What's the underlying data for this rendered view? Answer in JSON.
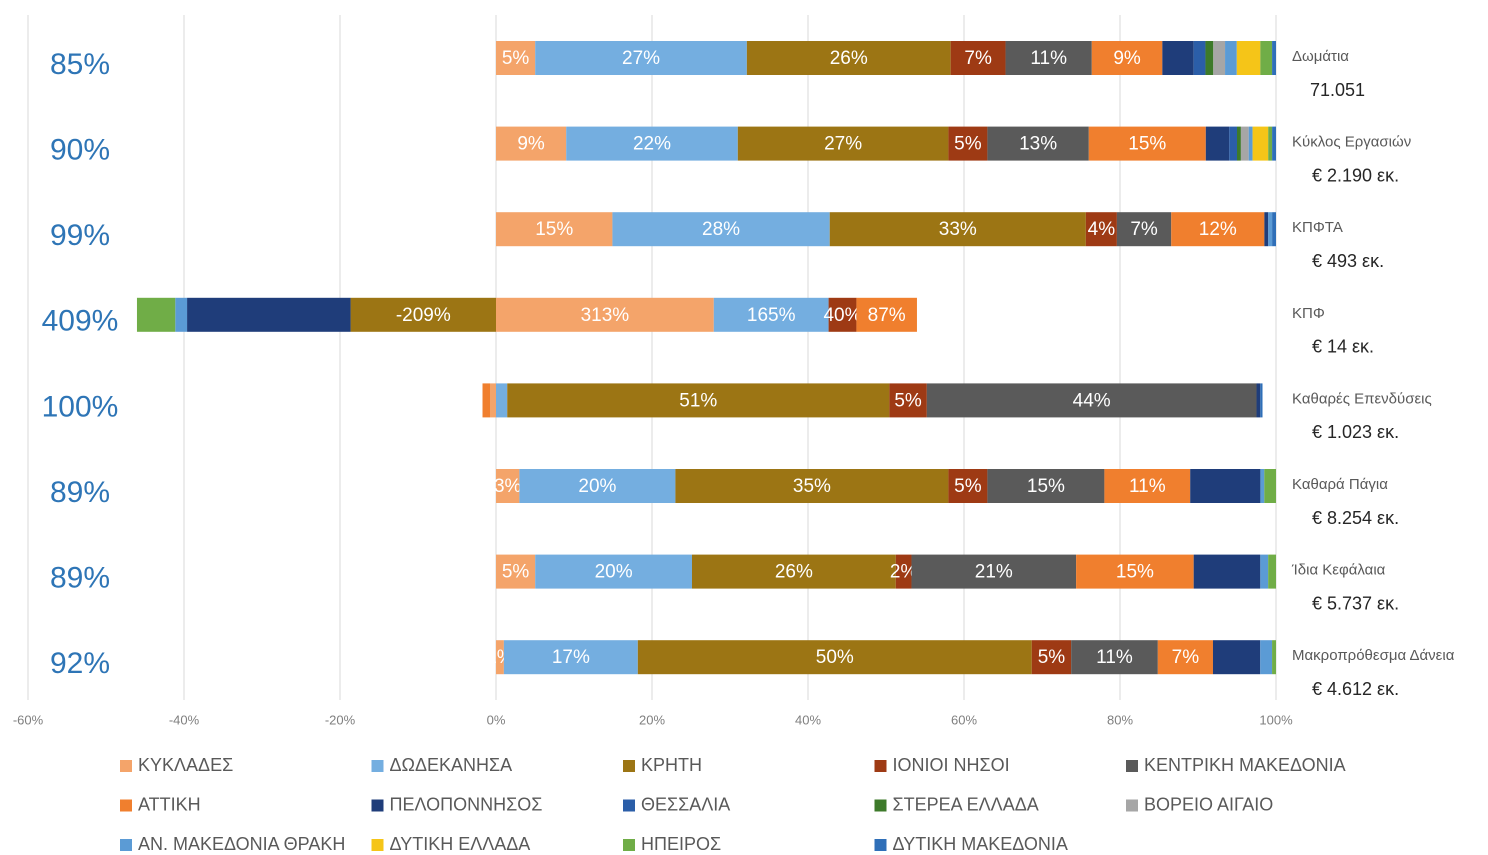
{
  "chart_data": {
    "type": "stacked_hbar",
    "stacked": "percent",
    "categories": [
      "Δωμάτια",
      "Κύκλος Εργασιών",
      "ΚΠΦΤΑ",
      "ΚΠΦ",
      "Καθαρές Επενδύσεις",
      "Καθαρά Πάγια",
      "Ίδια Κεφάλαια",
      "Μακροπρόθεσμα Δάνεια"
    ],
    "category_totals": [
      "71.051",
      "€ 2.190 εκ.",
      "€ 493 εκ.",
      "€ 14 εκ.",
      "€ 1.023 εκ.",
      "€ 8.254 εκ.",
      "€ 5.737 εκ.",
      "€ 4.612 εκ."
    ],
    "shares": [
      "85%",
      "90%",
      "99%",
      "409%",
      "100%",
      "89%",
      "89%",
      "92%"
    ],
    "xlim": [
      -60,
      100
    ],
    "xticks": [
      {
        "value": -60,
        "label": "-60%"
      },
      {
        "value": -40,
        "label": "-40%"
      },
      {
        "value": -20,
        "label": "-20%"
      },
      {
        "value": 0,
        "label": "0%"
      },
      {
        "value": 20,
        "label": "20%"
      },
      {
        "value": 40,
        "label": "40%"
      },
      {
        "value": 60,
        "label": "60%"
      },
      {
        "value": 80,
        "label": "80%"
      },
      {
        "value": 100,
        "label": "100%"
      }
    ],
    "grid": true,
    "series": [
      {
        "name": "ΚΥΚΛΑΔΕΣ",
        "color": "#f4a46a",
        "values": [
          5,
          9,
          15,
          313,
          -0.8,
          3,
          5,
          1
        ],
        "value_labels": [
          "5%",
          "9%",
          "15%",
          "313%",
          null,
          "3%",
          "5%",
          "1%"
        ]
      },
      {
        "name": "ΔΩΔΕΚΑΝΗΣΑ",
        "color": "#74aee0",
        "values": [
          27,
          22,
          28,
          165,
          1.5,
          20,
          20,
          17
        ],
        "value_labels": [
          "27%",
          "22%",
          "28%",
          "165%",
          null,
          "20%",
          "20%",
          "17%"
        ]
      },
      {
        "name": "ΚΡΗΤΗ",
        "color": "#9c7514",
        "values": [
          26,
          27,
          33,
          -209,
          51,
          35,
          26,
          50
        ],
        "value_labels": [
          "26%",
          "27%",
          "33%",
          "-209%",
          "51%",
          "35%",
          "26%",
          "50%"
        ]
      },
      {
        "name": "ΙΟΝΙΟΙ ΝΗΣΟΙ",
        "color": "#9e3a14",
        "values": [
          7,
          5,
          4,
          40,
          5,
          5,
          2,
          5
        ],
        "value_labels": [
          "7%",
          "5%",
          "4%",
          "40%",
          "5%",
          "5%",
          "2%",
          "5%"
        ]
      },
      {
        "name": "ΚΕΝΤΡΙΚΗ ΜΑΚΕΔΟΝΙΑ",
        "color": "#5a5a5a",
        "values": [
          11,
          13,
          7,
          0,
          44,
          15,
          21,
          11
        ],
        "value_labels": [
          "11%",
          "13%",
          "7%",
          null,
          "44%",
          "15%",
          "21%",
          "11%"
        ]
      },
      {
        "name": "ΑΤΤΙΚΗ",
        "color": "#f07f2e",
        "values": [
          9,
          15,
          12,
          87,
          -1,
          11,
          15,
          7
        ],
        "value_labels": [
          "9%",
          "15%",
          "12%",
          "87%",
          null,
          "11%",
          "15%",
          "7%"
        ]
      },
      {
        "name": "ΠΕΛΟΠΟΝΝΗΣΟΣ",
        "color": "#1f3d7a",
        "values": [
          4,
          3,
          0.5,
          -235,
          0.5,
          9,
          8.5,
          6
        ]
      },
      {
        "name": "ΘΕΣΣΑΛΙΑ",
        "color": "#2b5ea8",
        "values": [
          1.5,
          1,
          0,
          0,
          0,
          0,
          0,
          0
        ]
      },
      {
        "name": "ΣΤΕΡΕΑ ΕΛΛΑΔΑ",
        "color": "#3d7a2a",
        "values": [
          1,
          0.5,
          0,
          0,
          0,
          0,
          0,
          0
        ]
      },
      {
        "name": "ΒΟΡΕΙΟ ΑΙΓΑΙΟ",
        "color": "#a6a6a6",
        "values": [
          1.5,
          1,
          0,
          0,
          0,
          0,
          0,
          0
        ]
      },
      {
        "name": "ΑΝ. ΜΑΚΕΔΟΝΙΑ ΘΡΑΚΗ",
        "color": "#5b9bd5",
        "values": [
          1.5,
          0.5,
          0.5,
          -17,
          0,
          0.5,
          1,
          1.5
        ]
      },
      {
        "name": "ΔΥΤΙΚΗ ΕΛΛΑΔΑ",
        "color": "#f5c518",
        "values": [
          3,
          2,
          0,
          0,
          0,
          0,
          0,
          0
        ]
      },
      {
        "name": "ΗΠΕΙΡΟΣ",
        "color": "#70ad47",
        "values": [
          1.5,
          0.5,
          0,
          -55,
          0,
          1.5,
          1,
          0.5
        ]
      },
      {
        "name": "ΔΥΤΙΚΗ ΜΑΚΕΔΟΝΙΑ",
        "color": "#2f6fb8",
        "values": [
          0.5,
          0.5,
          0.5,
          0,
          0.3,
          0,
          0,
          0
        ]
      }
    ]
  }
}
